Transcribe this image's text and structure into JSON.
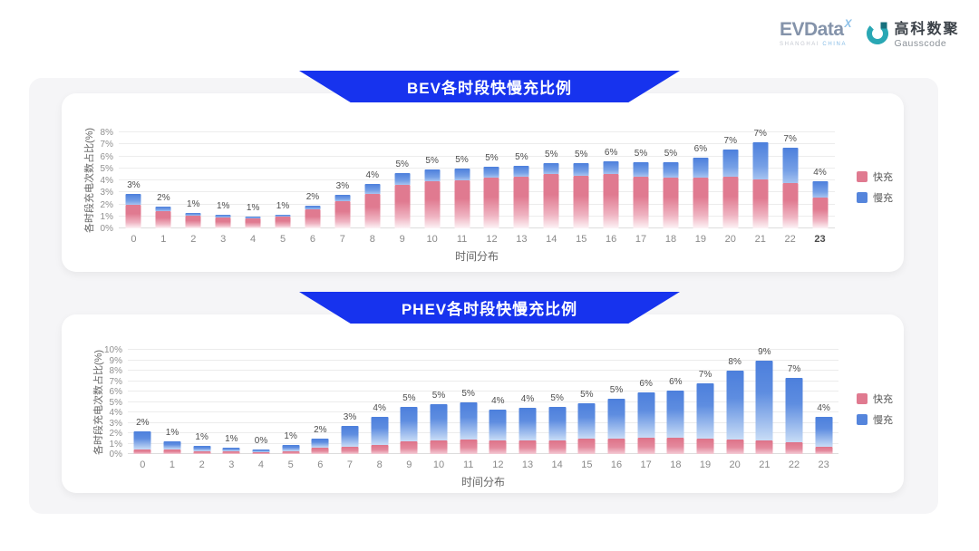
{
  "header": {
    "evdata": {
      "text": "EVData",
      "mark": "X",
      "sub_left": "SHANGHAI",
      "sub_right": "CHINA"
    },
    "gausscode": {
      "name_cn": "高科数聚",
      "name_en": "Gausscode"
    }
  },
  "colors": {
    "banner_blue": "#1733EE",
    "fast_charge_pink": "#E07A90",
    "slow_charge_blue": "#5585DC",
    "logo_teal": "#2AA7B4"
  },
  "chart_data": [
    {
      "type": "bar",
      "stacked": true,
      "title": "BEV各时段快慢充比例",
      "xlabel": "时间分布",
      "ylabel": "各时段充电次数占比(%)",
      "ylim": [
        0,
        8
      ],
      "ytick_step": 1,
      "grid": true,
      "legend_position": "right",
      "categories": [
        "0",
        "1",
        "2",
        "3",
        "4",
        "5",
        "6",
        "7",
        "8",
        "9",
        "10",
        "11",
        "12",
        "13",
        "14",
        "15",
        "16",
        "17",
        "18",
        "19",
        "20",
        "21",
        "22",
        "23"
      ],
      "series": [
        {
          "name": "快充",
          "color": "#E07A90",
          "values": [
            2.0,
            1.4,
            1.05,
            0.9,
            0.85,
            1.0,
            1.6,
            2.3,
            2.9,
            3.6,
            3.9,
            4.0,
            4.2,
            4.3,
            4.5,
            4.4,
            4.5,
            4.3,
            4.2,
            4.2,
            4.3,
            4.1,
            3.8,
            2.6
          ]
        },
        {
          "name": "慢充",
          "color": "#5585DC",
          "values": [
            0.9,
            0.4,
            0.25,
            0.2,
            0.1,
            0.15,
            0.3,
            0.5,
            0.8,
            1.0,
            1.0,
            0.95,
            0.9,
            0.9,
            0.9,
            1.0,
            1.1,
            1.2,
            1.3,
            1.7,
            2.3,
            3.1,
            2.9,
            1.3
          ]
        }
      ],
      "total_labels": [
        "3%",
        "2%",
        "1%",
        "1%",
        "1%",
        "1%",
        "2%",
        "3%",
        "4%",
        "5%",
        "5%",
        "5%",
        "5%",
        "5%",
        "5%",
        "5%",
        "6%",
        "5%",
        "5%",
        "6%",
        "7%",
        "7%",
        "7%",
        "4%"
      ]
    },
    {
      "type": "bar",
      "stacked": true,
      "title": "PHEV各时段快慢充比例",
      "xlabel": "时间分布",
      "ylabel": "各时段充电次数占比(%)",
      "ylim": [
        0,
        10
      ],
      "ytick_step": 1,
      "grid": true,
      "legend_position": "right",
      "categories": [
        "0",
        "1",
        "2",
        "3",
        "4",
        "5",
        "6",
        "7",
        "8",
        "9",
        "10",
        "11",
        "12",
        "13",
        "14",
        "15",
        "16",
        "17",
        "18",
        "19",
        "20",
        "21",
        "22",
        "23"
      ],
      "series": [
        {
          "name": "快充",
          "color": "#E07A90",
          "values": [
            0.45,
            0.4,
            0.3,
            0.25,
            0.2,
            0.3,
            0.6,
            0.7,
            0.9,
            1.2,
            1.3,
            1.4,
            1.3,
            1.3,
            1.3,
            1.5,
            1.5,
            1.6,
            1.6,
            1.5,
            1.4,
            1.3,
            1.1,
            0.7
          ]
        },
        {
          "name": "慢充",
          "color": "#5585DC",
          "values": [
            1.75,
            0.8,
            0.5,
            0.35,
            0.25,
            0.55,
            0.9,
            2.0,
            2.7,
            3.3,
            3.5,
            3.6,
            3.0,
            3.1,
            3.2,
            3.4,
            3.8,
            4.3,
            4.5,
            5.3,
            6.6,
            7.7,
            6.2,
            2.9
          ]
        }
      ],
      "total_labels": [
        "2%",
        "1%",
        "1%",
        "1%",
        "0%",
        "1%",
        "2%",
        "3%",
        "4%",
        "5%",
        "5%",
        "5%",
        "4%",
        "4%",
        "5%",
        "5%",
        "5%",
        "6%",
        "6%",
        "7%",
        "8%",
        "9%",
        "7%",
        "4%"
      ]
    }
  ]
}
